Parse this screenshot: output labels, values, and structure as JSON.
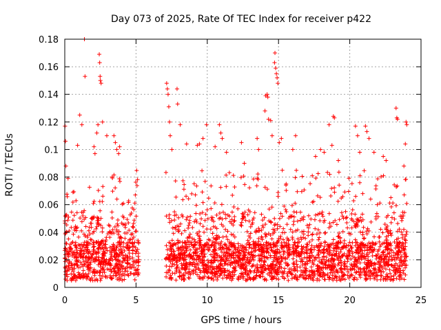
{
  "chart_data": {
    "type": "scatter",
    "title": "Day 073 of 2025, Rate Of TEC Index for receiver p422",
    "xlabel": "GPS time / hours",
    "ylabel": "ROTI / TECUs",
    "xlim": [
      0,
      25
    ],
    "ylim": [
      0,
      0.18
    ],
    "x_ticks": [
      0,
      5,
      10,
      15,
      20,
      25
    ],
    "y_ticks": [
      0,
      0.02,
      0.04,
      0.06,
      0.08,
      0.1,
      0.12,
      0.14,
      0.16,
      0.18
    ],
    "x_tick_labels": [
      "0",
      "5",
      "10",
      "15",
      "20",
      "25"
    ],
    "y_tick_labels": [
      "0",
      "0.02",
      "0.04",
      "0.06",
      "0.08",
      "0.1",
      "0.12",
      "0.14",
      "0.16",
      "0.18"
    ],
    "grid": true,
    "marker": "+",
    "color": "#ff0000",
    "data_gap_hours": [
      5.2,
      7.1
    ],
    "segments": [
      {
        "t_start": 0.0,
        "t_end": 5.2
      },
      {
        "t_start": 7.1,
        "t_end": 24.0
      }
    ],
    "series": [
      {
        "name": "ROTI",
        "points": [
          [
            0.02,
            0.117
          ],
          [
            0.05,
            0.106
          ],
          [
            0.08,
            0.088
          ],
          [
            0.9,
            0.103
          ],
          [
            1.05,
            0.125
          ],
          [
            1.2,
            0.118
          ],
          [
            1.38,
            0.18
          ],
          [
            1.42,
            0.153
          ],
          [
            2.05,
            0.102
          ],
          [
            2.12,
            0.097
          ],
          [
            2.25,
            0.112
          ],
          [
            2.33,
            0.118
          ],
          [
            2.42,
            0.169
          ],
          [
            2.45,
            0.163
          ],
          [
            2.48,
            0.153
          ],
          [
            2.5,
            0.15
          ],
          [
            2.55,
            0.148
          ],
          [
            2.65,
            0.12
          ],
          [
            2.95,
            0.11
          ],
          [
            3.45,
            0.11
          ],
          [
            3.55,
            0.105
          ],
          [
            3.65,
            0.1
          ],
          [
            3.78,
            0.097
          ],
          [
            3.85,
            0.102
          ],
          [
            4.95,
            0.067
          ],
          [
            7.15,
            0.148
          ],
          [
            7.2,
            0.144
          ],
          [
            7.25,
            0.14
          ],
          [
            7.3,
            0.131
          ],
          [
            7.35,
            0.12
          ],
          [
            7.4,
            0.11
          ],
          [
            7.52,
            0.1
          ],
          [
            7.88,
            0.144
          ],
          [
            7.92,
            0.133
          ],
          [
            8.1,
            0.118
          ],
          [
            8.55,
            0.104
          ],
          [
            9.3,
            0.103
          ],
          [
            9.45,
            0.104
          ],
          [
            9.7,
            0.108
          ],
          [
            9.95,
            0.118
          ],
          [
            10.55,
            0.102
          ],
          [
            10.85,
            0.118
          ],
          [
            10.95,
            0.112
          ],
          [
            11.05,
            0.108
          ],
          [
            11.35,
            0.098
          ],
          [
            12.4,
            0.105
          ],
          [
            12.6,
            0.09
          ],
          [
            13.5,
            0.108
          ],
          [
            13.6,
            0.1
          ],
          [
            14.05,
            0.128
          ],
          [
            14.1,
            0.139
          ],
          [
            14.2,
            0.14
          ],
          [
            14.25,
            0.138
          ],
          [
            14.3,
            0.122
          ],
          [
            14.45,
            0.121
          ],
          [
            14.55,
            0.11
          ],
          [
            14.72,
            0.163
          ],
          [
            14.75,
            0.17
          ],
          [
            14.8,
            0.159
          ],
          [
            14.85,
            0.155
          ],
          [
            14.9,
            0.152
          ],
          [
            14.95,
            0.148
          ],
          [
            15.05,
            0.105
          ],
          [
            15.2,
            0.108
          ],
          [
            16.0,
            0.1
          ],
          [
            16.2,
            0.11
          ],
          [
            17.6,
            0.095
          ],
          [
            17.95,
            0.1
          ],
          [
            18.2,
            0.098
          ],
          [
            18.55,
            0.118
          ],
          [
            18.75,
            0.103
          ],
          [
            18.85,
            0.124
          ],
          [
            18.92,
            0.123
          ],
          [
            19.2,
            0.092
          ],
          [
            20.4,
            0.117
          ],
          [
            20.55,
            0.11
          ],
          [
            20.7,
            0.098
          ],
          [
            21.1,
            0.117
          ],
          [
            21.2,
            0.113
          ],
          [
            21.35,
            0.108
          ],
          [
            21.7,
            0.098
          ],
          [
            22.35,
            0.095
          ],
          [
            22.55,
            0.092
          ],
          [
            23.25,
            0.13
          ],
          [
            23.3,
            0.123
          ],
          [
            23.35,
            0.122
          ],
          [
            23.8,
            0.088
          ],
          [
            23.9,
            0.104
          ],
          [
            23.95,
            0.12
          ],
          [
            24.0,
            0.118
          ]
        ]
      }
    ]
  }
}
